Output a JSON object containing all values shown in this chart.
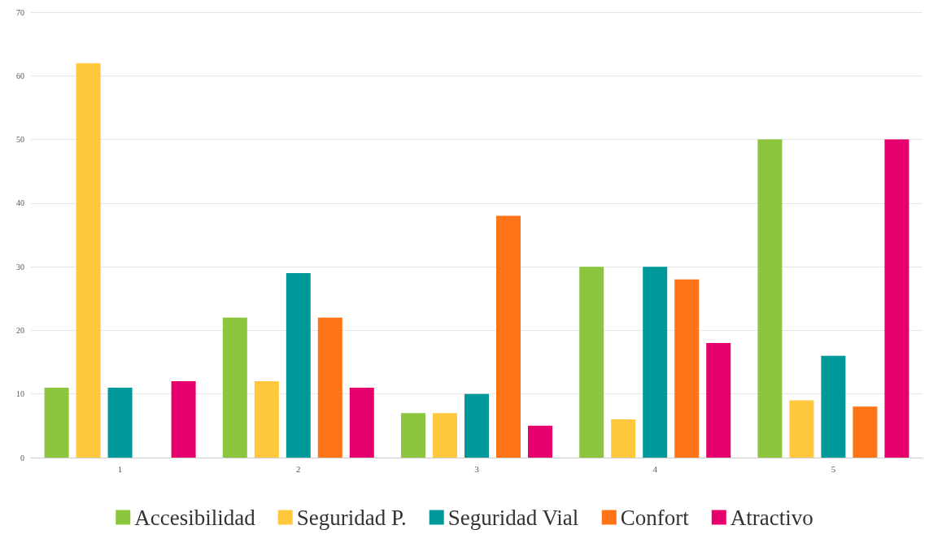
{
  "chart_data": {
    "type": "bar",
    "categories": [
      "1",
      "2",
      "3",
      "4",
      "5"
    ],
    "series": [
      {
        "name": "Accesibilidad",
        "color": "#8cc63f",
        "values": [
          11,
          22,
          7,
          30,
          50
        ]
      },
      {
        "name": "Seguridad P.",
        "color": "#ffc83d",
        "values": [
          62,
          12,
          7,
          6,
          9
        ]
      },
      {
        "name": "Seguridad Vial",
        "color": "#009999",
        "values": [
          11,
          29,
          10,
          30,
          16
        ]
      },
      {
        "name": "Confort",
        "color": "#ff7417",
        "values": [
          null,
          22,
          38,
          28,
          8
        ]
      },
      {
        "name": "Atractivo",
        "color": "#e6006e",
        "values": [
          12,
          11,
          5,
          18,
          50
        ]
      }
    ],
    "ylim": [
      0,
      70
    ],
    "yticks": [
      0,
      10,
      20,
      30,
      40,
      50,
      60,
      70
    ],
    "grid": "y",
    "legend": "bottom"
  }
}
